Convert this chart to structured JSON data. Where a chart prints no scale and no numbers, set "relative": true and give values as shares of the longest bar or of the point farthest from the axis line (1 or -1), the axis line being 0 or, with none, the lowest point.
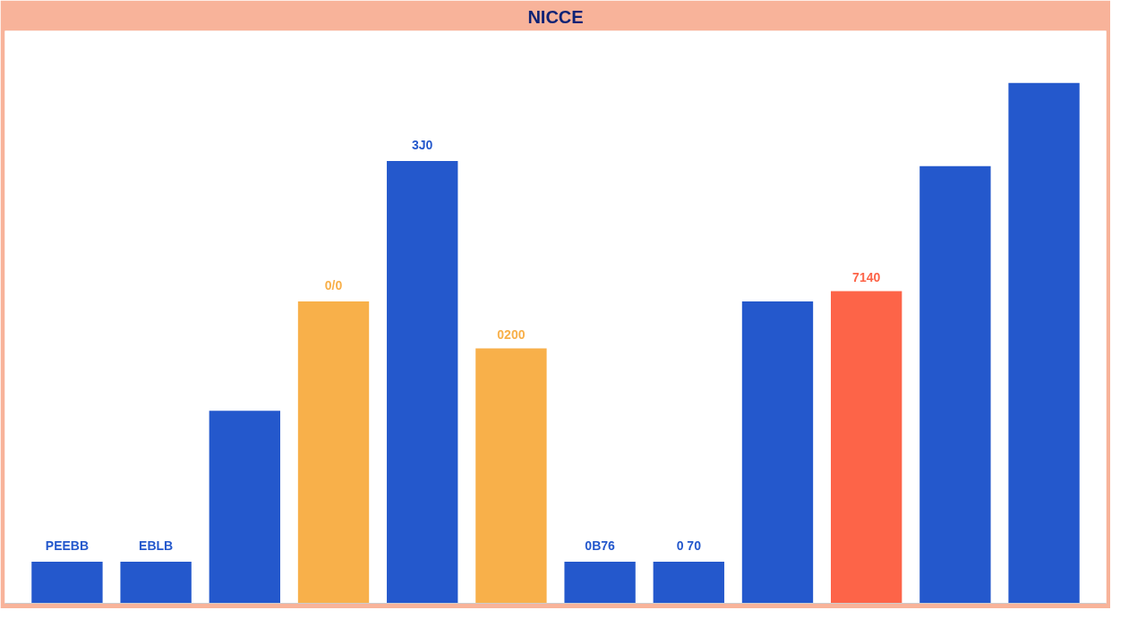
{
  "chart_data": {
    "type": "bar",
    "title": "NICCE",
    "relative": true,
    "grid": false,
    "categories": [
      null,
      null,
      null,
      null,
      null,
      null,
      null,
      null,
      null,
      null,
      null,
      null
    ],
    "values": [
      0.08,
      0.08,
      0.37,
      0.58,
      0.85,
      0.49,
      0.08,
      0.08,
      0.58,
      0.6,
      0.84,
      1.0
    ],
    "colors": [
      "#2458cc",
      "#2458cc",
      "#2458cc",
      "#f8b04a",
      "#2458cc",
      "#f8b04a",
      "#2458cc",
      "#2458cc",
      "#2458cc",
      "#fd6448",
      "#2458cc",
      "#2458cc"
    ],
    "annotations": [
      "PEEBB",
      "EBLB",
      "0/0",
      "3J0",
      "0200",
      "0B76",
      "0 70",
      "7140"
    ]
  }
}
